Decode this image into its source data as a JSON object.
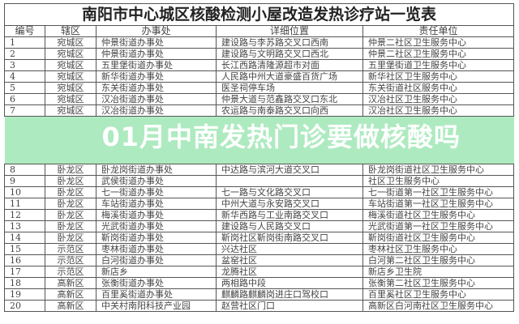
{
  "title": "南阳市中心城区核酸检测小屋改造发热诊疗站一览表",
  "headers": [
    "编号",
    "辖区",
    "办事处",
    "详细位置",
    "责任单位"
  ],
  "rows": [
    [
      "1",
      "宛城区",
      "仲景街道办事处",
      "建设路与李苏路交叉口西南",
      "仲景二社区卫生服务中心"
    ],
    [
      "2",
      "宛城区",
      "仲景街道办事处",
      "建设路与文明路交叉口西北",
      "仲景二社区卫生服务中心"
    ],
    [
      "3",
      "宛城区",
      "五里堡街道办事处",
      "长江西路清隆源超市对面",
      "五里堡街道卫生服务中心"
    ],
    [
      "4",
      "宛城区",
      "新华街道办事处",
      "人民路中州大道豪盛百货广场",
      "新华社区卫生服务中心"
    ],
    [
      "5",
      "宛城区",
      "东关街道办事处",
      "医圣祠停车场",
      "东关街道社区服务中心"
    ],
    [
      "6",
      "宛城区",
      "汉冶街道办事处",
      "仲景大道与范鑫路交叉口东北",
      "汉冶社区卫生服务中心"
    ],
    [
      "7",
      "宛城区",
      "汉冶街道办事处",
      "农运路与南泰路交叉口向西",
      "汉冶社区卫生服务中心"
    ],
    [
      "8",
      "卧龙区",
      "卧龙岗街道办事处",
      "中达路与滨河大道交叉口",
      "卧龙岗街道社区卫生服务中心"
    ],
    [
      "9",
      "卧龙区",
      "武侯街道办事处",
      "",
      "社区卫生服务中心"
    ],
    [
      "10",
      "卧龙区",
      "七一街道办事处",
      "七一路与文化路交叉口",
      "七一街道第一社区卫生服务中心"
    ],
    [
      "11",
      "卧龙区",
      "车站街道办事处",
      "中州大道与永安路交叉口",
      "车站街道第一社区卫生服务中心"
    ],
    [
      "12",
      "卧龙区",
      "梅溪街道办事处",
      "新华西路与工业南路交叉口",
      "梅溪街道社区卫生服务中心"
    ],
    [
      "13",
      "卧龙区",
      "光武街道办事处",
      "建设路与人民路交叉口",
      "光武街道第一社区卫生服务中心"
    ],
    [
      "14",
      "卧龙区",
      "靳岗街道办事处",
      "靳岗社区靳岗街南路交叉口",
      "靳岗街道社区卫生服务中心"
    ],
    [
      "15",
      "示范区",
      "枣林街道办事处",
      "兴达社区",
      "枣林社区卫生服务中心"
    ],
    [
      "16",
      "示范区",
      "白河街道办事处",
      "盆窑社区",
      "白河第二社区卫生服务中心"
    ],
    [
      "17",
      "示范区",
      "新店乡",
      "龙腾社区",
      "新店乡卫生院"
    ],
    [
      "18",
      "高新区",
      "张衡街道办事处",
      "两相路中段",
      "张衡第二社区卫生服务中心"
    ],
    [
      "19",
      "高新区",
      "百里奚街道办事处",
      "麒麟路麒麟岗进庄口驾校口",
      "百里奚社区卫生服务中心"
    ],
    [
      "20",
      "高新区",
      "中关村南阳科技产业园",
      "赵营社区门口",
      "高新区白河南社区卫生服务中心"
    ]
  ],
  "banner": "01月中南发热门诊要做核酸吗",
  "colors": {
    "banner": "#78dc96"
  }
}
